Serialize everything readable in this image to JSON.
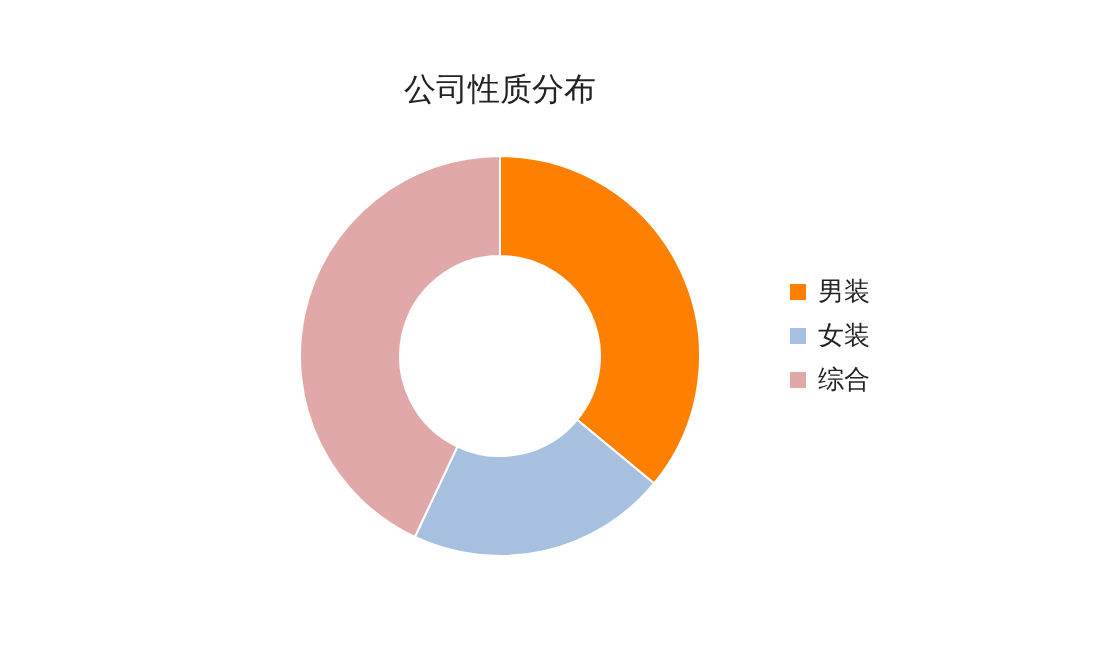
{
  "chart_data": {
    "type": "donut",
    "title": "公司性质分布",
    "categories": [
      "男装",
      "女装",
      "综合"
    ],
    "values": [
      36,
      21,
      43
    ],
    "colors": [
      "#ff7f00",
      "#a8c0e0",
      "#e0a8a8"
    ],
    "legend": "right"
  }
}
